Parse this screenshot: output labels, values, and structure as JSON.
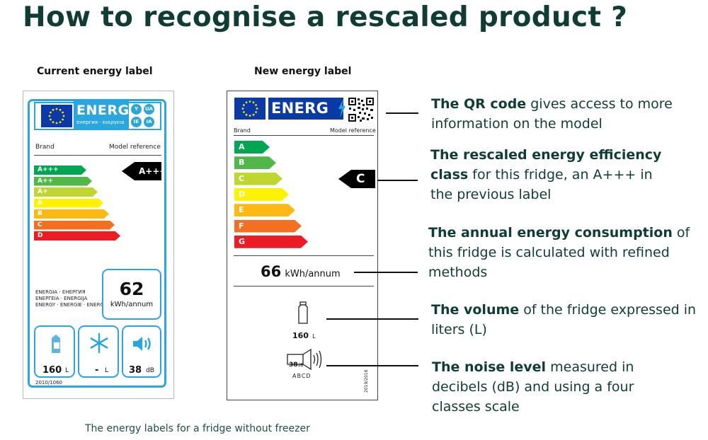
{
  "title": "How to recognise a rescaled product ?",
  "caption": "The energy labels for a fridge without freezer",
  "current_label": {
    "heading": "Current energy label",
    "energ_word": "ENERG",
    "energ_sub": "енергия · ενεργεια",
    "circles": [
      "Y",
      "UA",
      "IE",
      "IA"
    ],
    "brand": "Brand",
    "model_ref": "Model reference",
    "classes": [
      {
        "label": "A+++",
        "color": "#00a651"
      },
      {
        "label": "A++",
        "color": "#50b848"
      },
      {
        "label": "A+",
        "color": "#bfd630"
      },
      {
        "label": "A",
        "color": "#fff200"
      },
      {
        "label": "B",
        "color": "#fdb913"
      },
      {
        "label": "C",
        "color": "#f37021"
      },
      {
        "label": "D",
        "color": "#ed1c24"
      }
    ],
    "class_indicator": "A+++",
    "energia_lines": [
      "ENERGIA · ЕНЕРГИЯ",
      "ΕΝΕΡΓΕΙΑ · ENERGIJA",
      "ENERGY · ENERGIE · ENERGI"
    ],
    "consumption_value": "62",
    "consumption_unit": "kWh/annum",
    "volume_value": "160",
    "volume_unit": "L",
    "freezer_value": "-",
    "freezer_unit": "L",
    "noise_value": "38",
    "noise_unit": "dB",
    "regulation": "2010/1060",
    "icons": [
      "milk-carton-icon",
      "snowflake-icon",
      "speaker-icon"
    ]
  },
  "new_label": {
    "heading": "New energy label",
    "energ_word": "ENERG",
    "brand": "Brand",
    "model_ref": "Model reference",
    "classes": [
      {
        "label": "A",
        "color": "#00a651"
      },
      {
        "label": "B",
        "color": "#50b848"
      },
      {
        "label": "C",
        "color": "#bfd630"
      },
      {
        "label": "D",
        "color": "#fff200"
      },
      {
        "label": "E",
        "color": "#fdb913"
      },
      {
        "label": "F",
        "color": "#f37021"
      },
      {
        "label": "G",
        "color": "#ed1c24"
      }
    ],
    "class_indicator": "C",
    "consumption_value": "66",
    "consumption_unit": "kWh/annum",
    "volume_value": "160",
    "volume_unit": "L",
    "noise_value": "38",
    "noise_unit": "dB",
    "noise_classes": "ABCD",
    "regulation": "2019/2016",
    "icons": [
      "eu-flag-icon",
      "lightning-icon",
      "qr-code-icon",
      "bottle-icon",
      "speaker-icon"
    ]
  },
  "notes": [
    {
      "bold": "The QR code",
      "rest": "gives access to more information on the model"
    },
    {
      "bold": "The rescaled energy efficiency class",
      "rest": "for this fridge, an A+++ in the previous label"
    },
    {
      "bold": "The annual energy consumption",
      "rest": "of this fridge is calculated with refined methods"
    },
    {
      "bold": "The volume",
      "rest": "of the fridge expressed in liters (L)"
    },
    {
      "bold": "The noise level",
      "rest": "measured in decibels (dB) and using a four classes scale"
    }
  ],
  "colors": {
    "title": "#0f3d33",
    "label_blue": "#2aa6df",
    "eu_blue": "#0a3aa8"
  }
}
